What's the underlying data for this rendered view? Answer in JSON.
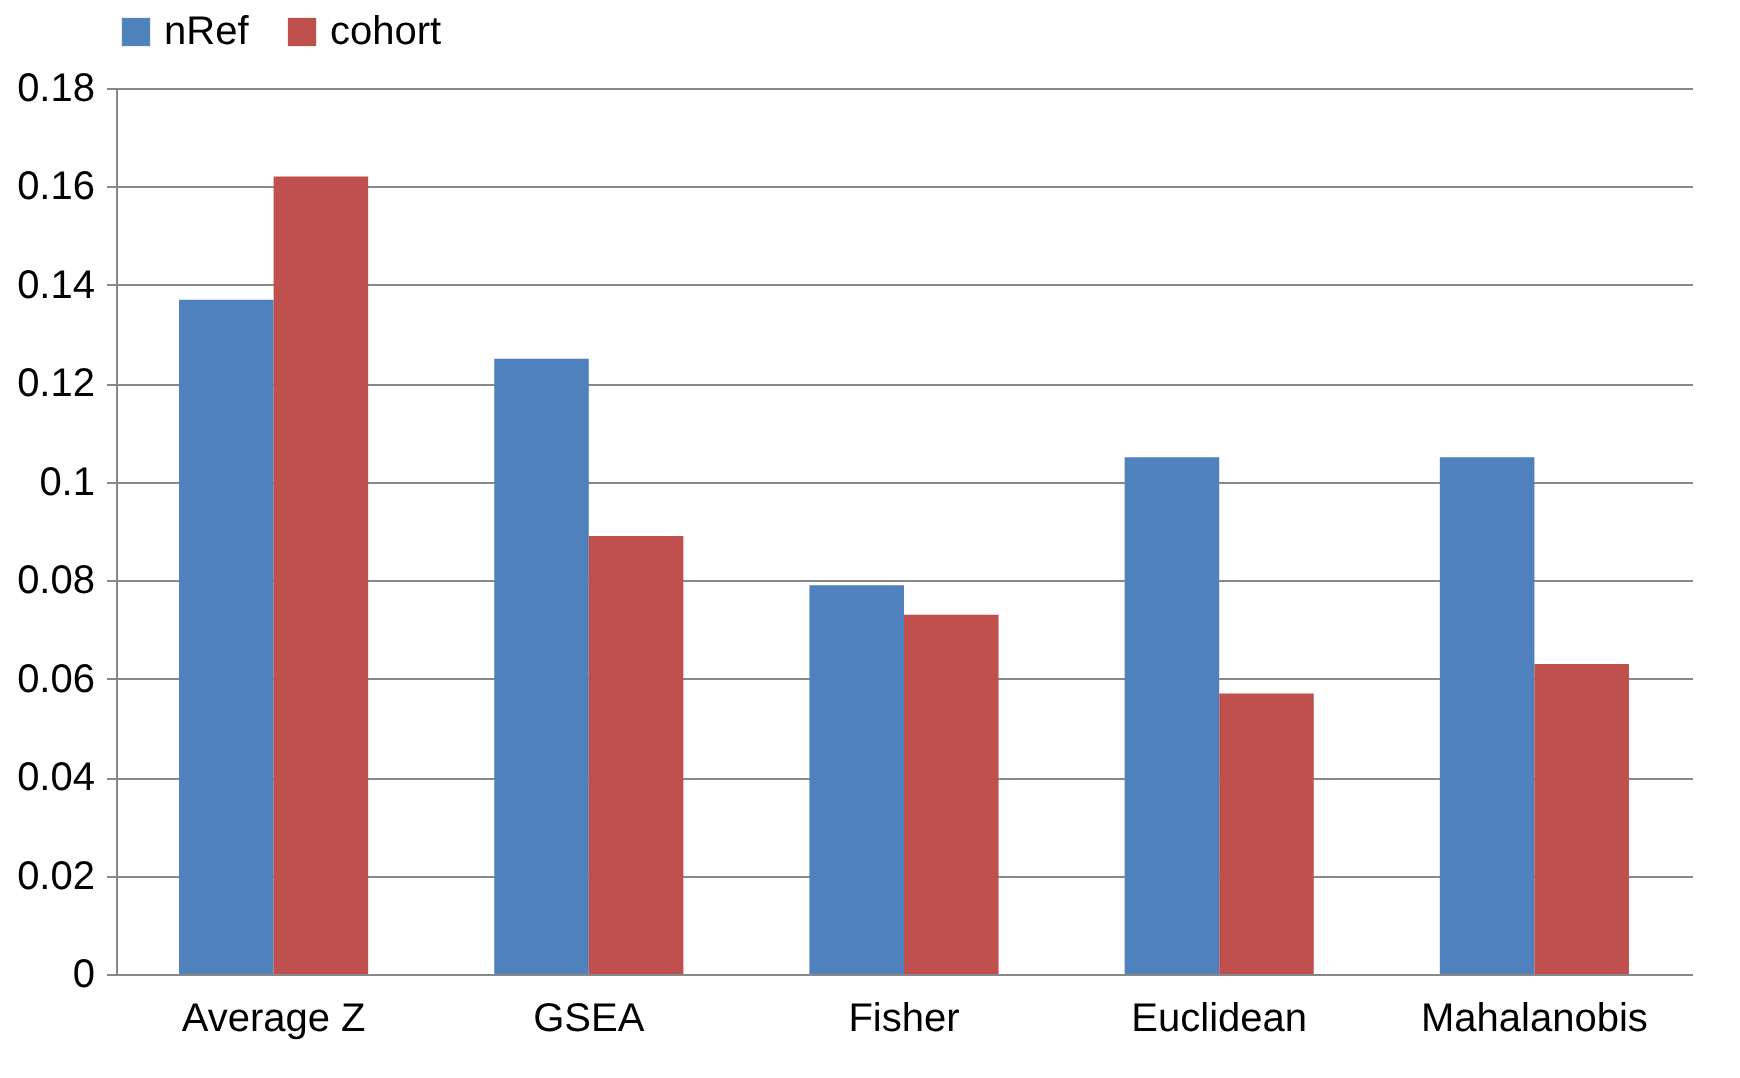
{
  "chart_data": {
    "type": "bar",
    "categories": [
      "Average Z",
      "GSEA",
      "Fisher",
      "Euclidean",
      "Mahalanobis"
    ],
    "series": [
      {
        "name": "nRef",
        "color": "#4f81bd",
        "values": [
          0.137,
          0.125,
          0.079,
          0.105,
          0.105
        ]
      },
      {
        "name": "cohort",
        "color": "#c0504d",
        "values": [
          0.162,
          0.089,
          0.073,
          0.057,
          0.063
        ]
      }
    ],
    "ylim": [
      0,
      0.18
    ],
    "yticks": [
      0,
      0.02,
      0.04,
      0.06,
      0.08,
      0.1,
      0.12,
      0.14,
      0.16,
      0.18
    ],
    "grid": "y",
    "legend": "top"
  }
}
